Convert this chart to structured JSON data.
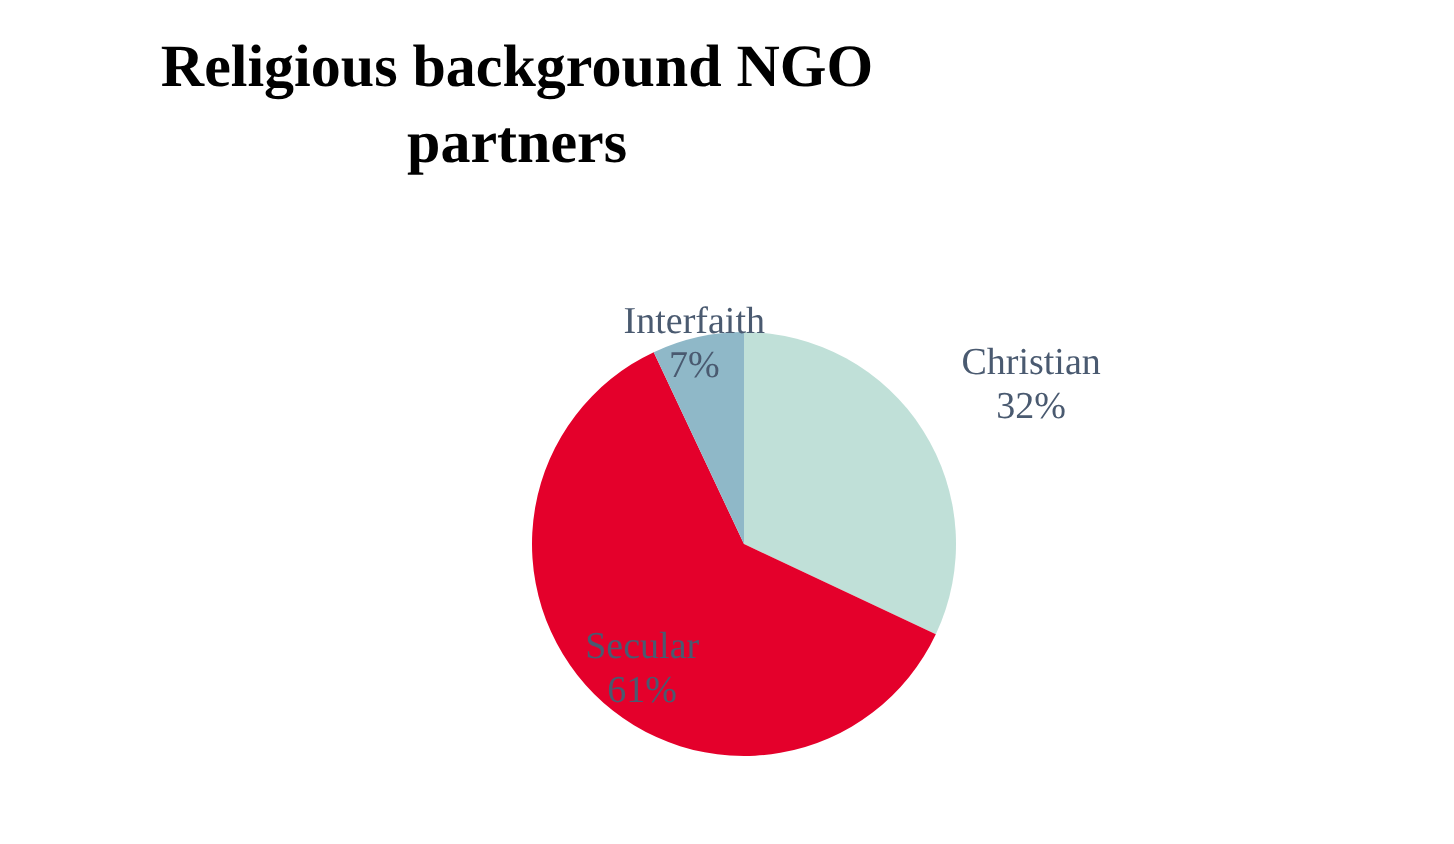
{
  "chart_data": {
    "type": "pie",
    "title": "Religious background NGO partners",
    "categories": [
      "Christian",
      "Secular",
      "Interfaith"
    ],
    "values": [
      32,
      61,
      7
    ],
    "colors": [
      "#c0e0d8",
      "#e4002b",
      "#8fb8c8"
    ],
    "value_labels": [
      "32%",
      "61%",
      "7%"
    ],
    "legend": false
  }
}
